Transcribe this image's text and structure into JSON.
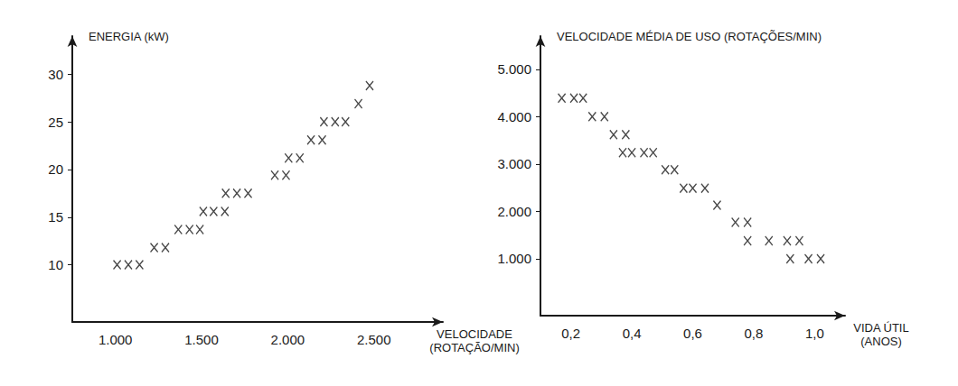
{
  "chart_data": [
    {
      "type": "scatter",
      "xlabel": "VELOCIDADE (ROTAÇÃO/MIN)",
      "ylabel": "ENERGIA (kW)",
      "x": [
        1010,
        1075,
        1140,
        1225,
        1290,
        1365,
        1430,
        1490,
        1510,
        1570,
        1635,
        1640,
        1705,
        1770,
        1925,
        1990,
        2005,
        2070,
        2135,
        2200,
        2210,
        2275,
        2335,
        2410,
        2475
      ],
      "values": [
        10.0,
        10.0,
        10.0,
        11.8,
        11.8,
        13.7,
        13.7,
        13.7,
        15.6,
        15.6,
        15.6,
        17.5,
        17.5,
        17.5,
        19.4,
        19.4,
        21.2,
        21.2,
        23.1,
        23.1,
        25.0,
        25.0,
        25.0,
        26.9,
        28.8
      ],
      "marker": "x",
      "color": "#1a1a1a",
      "xlim": [
        750,
        2900
      ],
      "ylim": [
        4,
        34
      ],
      "xticks": [
        {
          "value": 1000,
          "label": "1.000"
        },
        {
          "value": 1500,
          "label": "1.500"
        },
        {
          "value": 2000,
          "label": "2.000"
        },
        {
          "value": 2500,
          "label": "2.500"
        }
      ],
      "yticks": [
        10,
        15,
        20,
        25,
        30
      ],
      "grid": false
    },
    {
      "type": "scatter",
      "xlabel": "VIDA ÚTIL (ANOS)",
      "ylabel": "VELOCIDADE MÉDIA DE USO (ROTAÇÕES/MIN)",
      "x": [
        0.17,
        0.21,
        0.24,
        0.27,
        0.31,
        0.34,
        0.38,
        0.37,
        0.4,
        0.44,
        0.47,
        0.51,
        0.54,
        0.57,
        0.6,
        0.64,
        0.68,
        0.74,
        0.78,
        0.78,
        0.85,
        0.91,
        0.95,
        0.92,
        0.98,
        1.02
      ],
      "values": [
        4390,
        4390,
        4390,
        4000,
        4000,
        3620,
        3620,
        3240,
        3240,
        3240,
        3240,
        2880,
        2880,
        2490,
        2490,
        2490,
        2130,
        1770,
        1770,
        1380,
        1380,
        1380,
        1380,
        1000,
        1000,
        1000
      ],
      "marker": "x",
      "color": "#1a1a1a",
      "xlim": [
        0.1,
        1.1
      ],
      "ylim": [
        -200,
        5700
      ],
      "xticks": [
        {
          "value": 0.2,
          "label": "0,2"
        },
        {
          "value": 0.4,
          "label": "0,4"
        },
        {
          "value": 0.6,
          "label": "0,6"
        },
        {
          "value": 0.8,
          "label": "0,8"
        },
        {
          "value": 1.0,
          "label": "1,0"
        }
      ],
      "yticks": [
        {
          "value": 1000,
          "label": "1.000"
        },
        {
          "value": 2000,
          "label": "2.000"
        },
        {
          "value": 3000,
          "label": "3.000"
        },
        {
          "value": 4000,
          "label": "4.000"
        },
        {
          "value": 5000,
          "label": "5.000"
        }
      ],
      "grid": false
    }
  ]
}
